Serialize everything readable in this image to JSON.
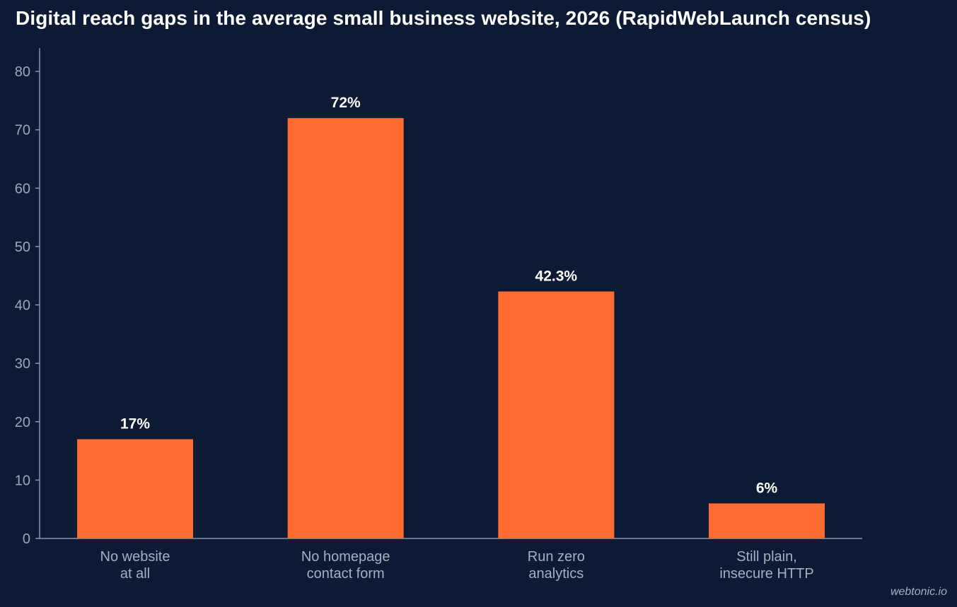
{
  "chart_data": {
    "type": "bar",
    "title": "Digital reach gaps in the average small business website, 2026 (RapidWebLaunch census)",
    "xlabel": "",
    "ylabel": "",
    "categories": [
      [
        "No website",
        "at all"
      ],
      [
        "No homepage",
        "contact form"
      ],
      [
        "Run zero",
        "analytics"
      ],
      [
        "Still plain,",
        "insecure HTTP"
      ]
    ],
    "values": [
      17,
      72,
      42.3,
      6
    ],
    "data_labels": [
      "17%",
      "72%",
      "42.3%",
      "6%"
    ],
    "ylim": [
      0,
      84
    ],
    "yticks": [
      0,
      10,
      20,
      30,
      40,
      50,
      60,
      70,
      80
    ],
    "grid": false,
    "legend": "none"
  },
  "colors": {
    "background": "#0c1b33",
    "bar": "#ff6b30",
    "axis": "#8796ad",
    "tick_label": "#9aa8bd",
    "category_label": "#a3b0c4",
    "data_label": "#ffffff",
    "title": "#ffffff"
  },
  "footer": {
    "credit": "webtonic.io"
  }
}
